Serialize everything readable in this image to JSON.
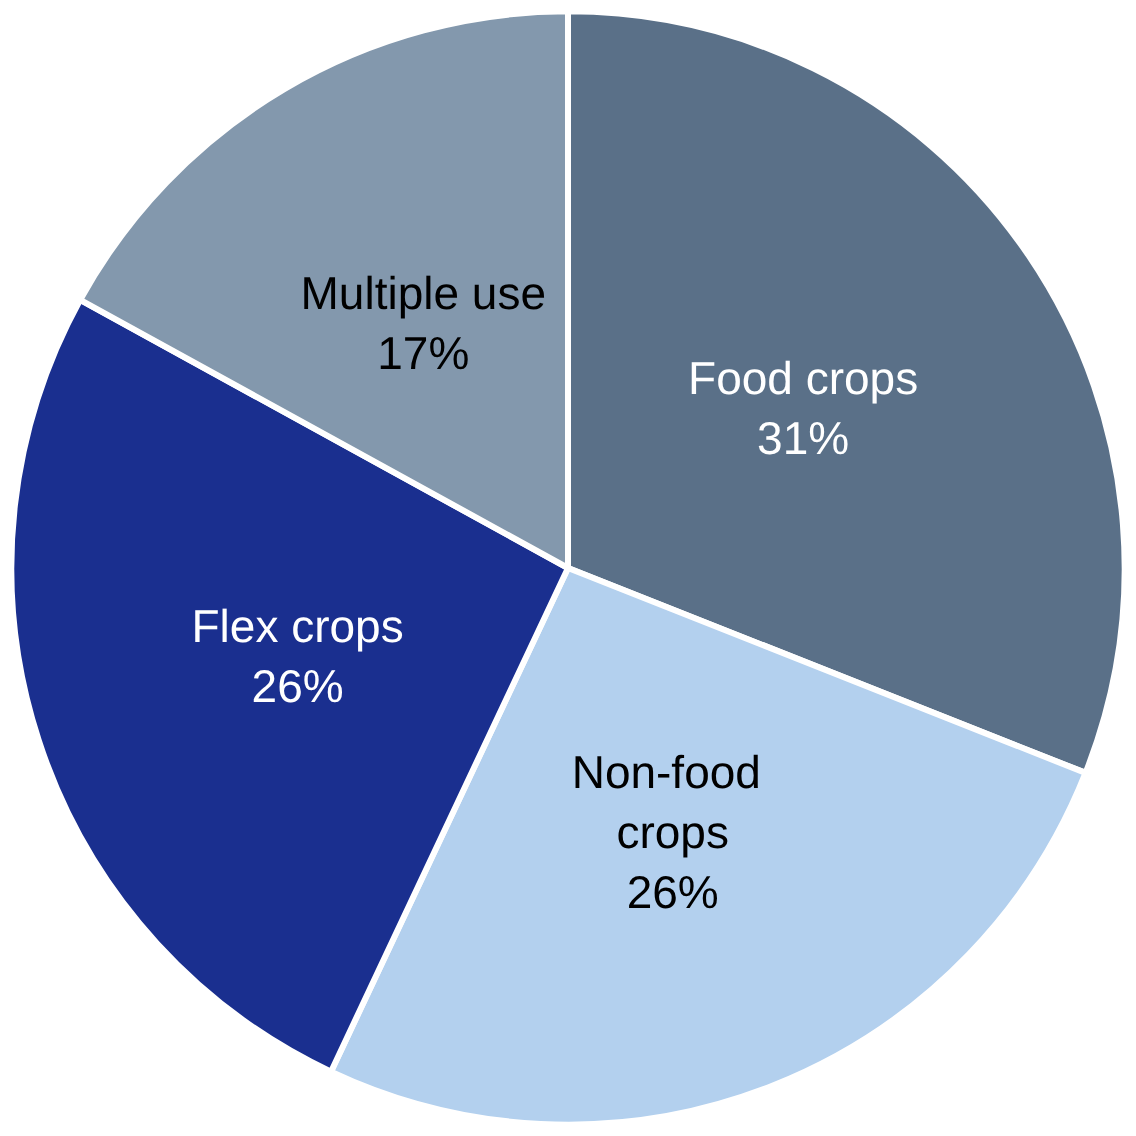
{
  "chart_data": {
    "type": "pie",
    "categories": [
      "Food crops",
      "Non-food crops",
      "Flex crops",
      "Multiple use"
    ],
    "values": [
      31,
      26,
      26,
      17
    ],
    "value_labels": [
      "31%",
      "26%",
      "26%",
      "17%"
    ],
    "colors": [
      "#5a7088",
      "#b3d0ee",
      "#1a2f8f",
      "#8398ad"
    ],
    "legend": false
  }
}
